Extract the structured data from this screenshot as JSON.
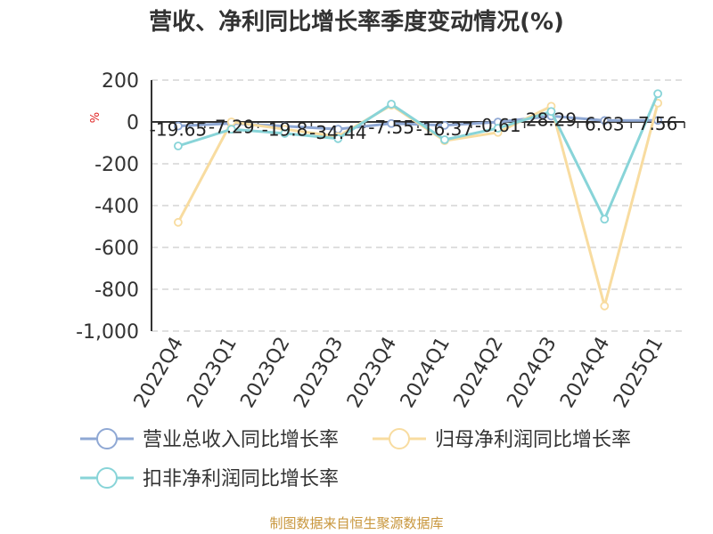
{
  "title": "营收、净利同比增长率季度变动情况(%)",
  "source": "制图数据来自恒生聚源数据库",
  "chart_data": {
    "type": "line",
    "title": "营收、净利同比增长率季度变动情况(%)",
    "ylabel": "%",
    "xlabel": "",
    "categories": [
      "2022Q4",
      "2023Q1",
      "2023Q2",
      "2023Q3",
      "2023Q4",
      "2024Q1",
      "2024Q2",
      "2024Q3",
      "2024Q4",
      "2025Q1"
    ],
    "ylim": [
      -1000,
      200
    ],
    "yticks": [
      200,
      0,
      -200,
      -400,
      -600,
      -800,
      -1000
    ],
    "ytick_labels": [
      "200",
      "0",
      "-200",
      "-400",
      "-600",
      "-800",
      "-1,000"
    ],
    "grid": true,
    "legend_position": "bottom",
    "series": [
      {
        "name": "营业总收入同比增长率",
        "color": "#8fa8d4",
        "values": [
          -19.65,
          -7.29,
          -19.8,
          -34.44,
          -7.55,
          -16.37,
          -0.61,
          28.29,
          6.63,
          7.56
        ],
        "data_labels": [
          "-19.65",
          "-7.29",
          "-19.8",
          "-34.44",
          "-7.55",
          "-16.37",
          "-0.61",
          "28.29",
          "6.63",
          "7.56"
        ]
      },
      {
        "name": "归母净利润同比增长率",
        "color": "#f8dca0",
        "values": [
          -480,
          0,
          -35,
          -70,
          80,
          -90,
          -50,
          75,
          -880,
          90
        ]
      },
      {
        "name": "扣非净利润同比增长率",
        "color": "#88d4d8",
        "values": [
          -115,
          -35,
          -55,
          -80,
          85,
          -85,
          -30,
          50,
          -465,
          135
        ]
      }
    ]
  }
}
